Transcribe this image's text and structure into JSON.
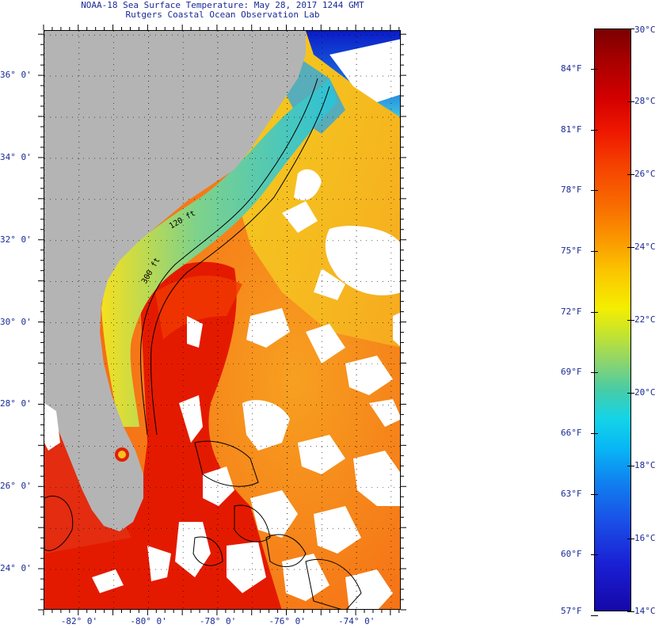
{
  "header": {
    "title_line1": "NOAA-18 Sea Surface Temperature:  May 28, 2017 1244 GMT",
    "title_line2": "Rutgers Coastal Ocean Observation Lab"
  },
  "map": {
    "lon_range": [
      -83,
      -72.7
    ],
    "lat_range": [
      23.0,
      37.1
    ],
    "lon_ticks": [
      {
        "value": -82,
        "label": "-82° 0'"
      },
      {
        "value": -80,
        "label": "-80° 0'"
      },
      {
        "value": -78,
        "label": "-78° 0'"
      },
      {
        "value": -76,
        "label": "-76° 0'"
      },
      {
        "value": -74,
        "label": "-74° 0'"
      }
    ],
    "lat_ticks": [
      {
        "value": 36,
        "label": "36° 0'"
      },
      {
        "value": 34,
        "label": "34° 0'"
      },
      {
        "value": 32,
        "label": "32° 0'"
      },
      {
        "value": 30,
        "label": "30° 0'"
      },
      {
        "value": 28,
        "label": "28° 0'"
      },
      {
        "value": 26,
        "label": "26° 0'"
      },
      {
        "value": 24,
        "label": "24° 0'"
      }
    ],
    "contour_labels": [
      "120 ft",
      "300 ft"
    ],
    "colors": {
      "land": "#b4b4b4",
      "cloud": "#ffffff",
      "gulf_stream": "#e31800",
      "warm_ocean": "#f56a10",
      "cool_shelf": "#3fc8c8",
      "cold_north": "#1030d0"
    }
  },
  "colorbar": {
    "celsius": [
      {
        "value": 30,
        "label": "30°C"
      },
      {
        "value": 28,
        "label": "28°C"
      },
      {
        "value": 26,
        "label": "26°C"
      },
      {
        "value": 24,
        "label": "24°C"
      },
      {
        "value": 22,
        "label": "22°C"
      },
      {
        "value": 20,
        "label": "20°C"
      },
      {
        "value": 18,
        "label": "18°C"
      },
      {
        "value": 16,
        "label": "16°C"
      },
      {
        "value": 14,
        "label": "14°C"
      }
    ],
    "fahrenheit": [
      {
        "value": 84,
        "label": "84°F"
      },
      {
        "value": 81,
        "label": "81°F"
      },
      {
        "value": 78,
        "label": "78°F"
      },
      {
        "value": 75,
        "label": "75°F"
      },
      {
        "value": 72,
        "label": "72°F"
      },
      {
        "value": 69,
        "label": "69°F"
      },
      {
        "value": 66,
        "label": "66°F"
      },
      {
        "value": 63,
        "label": "63°F"
      },
      {
        "value": 60,
        "label": "60°F"
      },
      {
        "value": 57,
        "label": "57°F"
      }
    ],
    "min_c": 14,
    "max_c": 30
  }
}
